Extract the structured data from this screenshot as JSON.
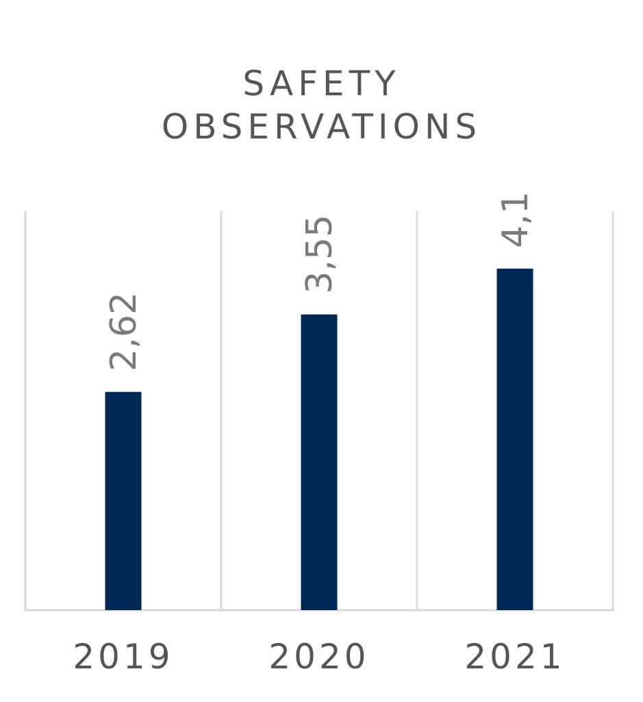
{
  "chart_data": {
    "type": "bar",
    "title_lines": [
      "SAFETY",
      "OBSERVATIONS"
    ],
    "categories": [
      "2019",
      "2020",
      "2021"
    ],
    "values": [
      2.62,
      3.55,
      4.1
    ],
    "value_labels": [
      "2,62",
      "3,55",
      "4,1"
    ],
    "ylim": [
      0,
      4.79
    ],
    "grid": true,
    "legend": "none",
    "colors": {
      "bar": "#002855",
      "grid": "#d9d9d9",
      "value_label": "#7a7a7a",
      "category_label": "#555555"
    }
  }
}
